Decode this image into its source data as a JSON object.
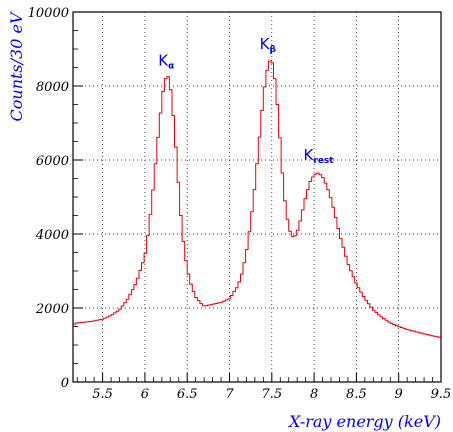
{
  "chart_data": {
    "type": "line",
    "style": "histogram-step",
    "xlabel": "X-ray energy (keV)",
    "ylabel": "Counts/30 eV",
    "xlim": [
      5.15,
      9.5
    ],
    "ylim": [
      0,
      10000
    ],
    "x_ticks": [
      "5.5",
      "6",
      "6.5",
      "7",
      "7.5",
      "8",
      "8.5",
      "9",
      "9.5"
    ],
    "y_ticks": [
      "0",
      "2000",
      "4000",
      "6000",
      "8000",
      "10000"
    ],
    "grid": true,
    "bin_width": 0.03,
    "series": [
      {
        "color": "#e8000b",
        "x": [
          5.15,
          5.2,
          5.3,
          5.4,
          5.5,
          5.6,
          5.7,
          5.8,
          5.9,
          6.0,
          6.05,
          6.1,
          6.15,
          6.2,
          6.23,
          6.26,
          6.29,
          6.32,
          6.35,
          6.38,
          6.41,
          6.44,
          6.47,
          6.5,
          6.55,
          6.6,
          6.65,
          6.7,
          6.8,
          6.9,
          7.0,
          7.1,
          7.15,
          7.2,
          7.25,
          7.3,
          7.35,
          7.4,
          7.43,
          7.46,
          7.49,
          7.52,
          7.55,
          7.58,
          7.61,
          7.64,
          7.67,
          7.7,
          7.73,
          7.76,
          7.79,
          7.82,
          7.85,
          7.9,
          7.95,
          8.0,
          8.05,
          8.1,
          8.15,
          8.2,
          8.25,
          8.3,
          8.35,
          8.4,
          8.5,
          8.6,
          8.7,
          8.8,
          8.9,
          9.0,
          9.1,
          9.2,
          9.3,
          9.4,
          9.5
        ],
        "values": [
          1550,
          1600,
          1620,
          1650,
          1700,
          1800,
          1950,
          2250,
          2700,
          3400,
          4200,
          5300,
          6500,
          7600,
          8100,
          8300,
          8200,
          7600,
          6800,
          5900,
          4900,
          4100,
          3500,
          3050,
          2600,
          2300,
          2150,
          2050,
          2100,
          2150,
          2250,
          2600,
          2950,
          3500,
          4300,
          5300,
          6500,
          7700,
          8250,
          8600,
          8750,
          8500,
          7900,
          7100,
          6100,
          5200,
          4600,
          4200,
          3950,
          3900,
          4000,
          4200,
          4500,
          5000,
          5400,
          5600,
          5650,
          5550,
          5300,
          4950,
          4500,
          4000,
          3600,
          3200,
          2650,
          2250,
          1950,
          1750,
          1600,
          1500,
          1420,
          1360,
          1300,
          1250,
          1200
        ]
      }
    ],
    "annotations": [
      {
        "text": "K",
        "subscript": "α",
        "x": 6.3,
        "y": 8550,
        "color": "#0000ff"
      },
      {
        "text": "K",
        "subscript": "β",
        "x": 7.5,
        "y": 9000,
        "color": "#0000ff"
      },
      {
        "text": "K",
        "subscript": "rest",
        "x": 8.1,
        "y": 6000,
        "color": "#0000ff"
      }
    ],
    "colors": {
      "axis_label": "#0000ff",
      "data_line": "#e8000b",
      "annotation": "#0000ff",
      "grid": "#000000"
    }
  }
}
